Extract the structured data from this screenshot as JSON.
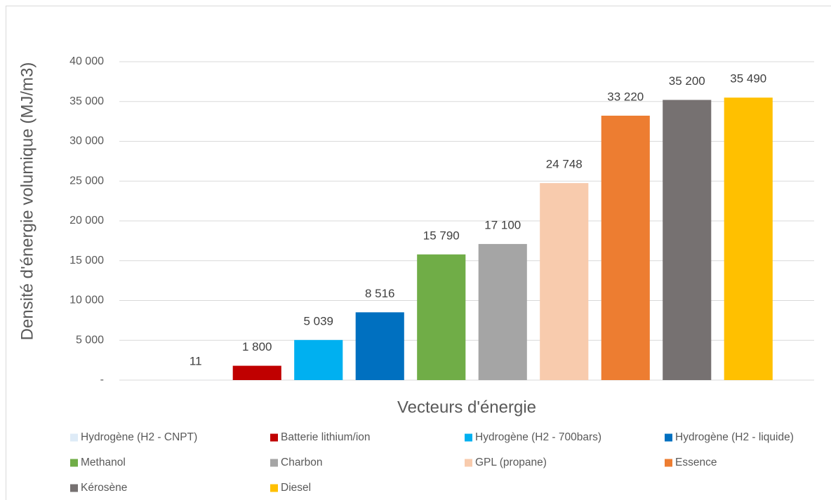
{
  "chart_data": {
    "type": "bar",
    "x_label": "Vecteurs d'énergie",
    "y_label": "Densité d'énergie volumique (MJ/m3)",
    "categories": [
      "Hydrogène (H2 - CNPT)",
      "Batterie lithium/ion",
      "Hydrogène (H2 - 700bars)",
      "Hydrogène (H2 - liquide)",
      "Methanol",
      "Charbon",
      "GPL (propane)",
      "Essence",
      "Kérosène",
      "Diesel"
    ],
    "values": [
      11,
      1800,
      5039,
      8516,
      15790,
      17100,
      24748,
      33220,
      35200,
      35490
    ],
    "value_labels": [
      "11",
      "1 800",
      "5 039",
      "8 516",
      "15 790",
      "17 100",
      "24 748",
      "33 220",
      "35 200",
      "35 490"
    ],
    "colors": [
      "#deebf7",
      "#c00000",
      "#00b0f0",
      "#0070c0",
      "#70ad47",
      "#a5a5a5",
      "#f8cbad",
      "#ed7d31",
      "#767171",
      "#ffc000"
    ],
    "ylim": [
      0,
      40000
    ],
    "yticks": [
      {
        "value": 0,
        "label": "-"
      },
      {
        "value": 5000,
        "label": "5 000"
      },
      {
        "value": 10000,
        "label": "10 000"
      },
      {
        "value": 15000,
        "label": "15 000"
      },
      {
        "value": 20000,
        "label": "20 000"
      },
      {
        "value": 25000,
        "label": "25 000"
      },
      {
        "value": 30000,
        "label": "30 000"
      },
      {
        "value": 35000,
        "label": "35 000"
      },
      {
        "value": 40000,
        "label": "40 000"
      }
    ],
    "grid": true,
    "legend": "bottom"
  }
}
